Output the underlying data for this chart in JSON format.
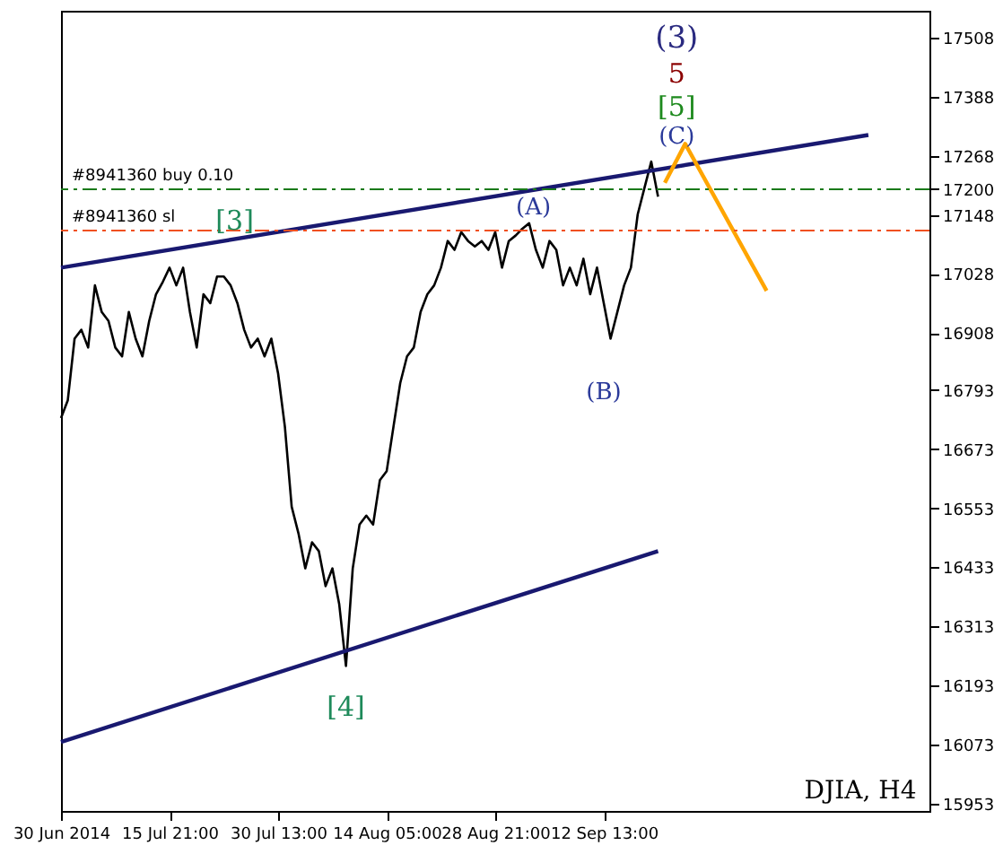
{
  "chart_data": {
    "type": "line",
    "categories": [
      "30 Jun 2014",
      null,
      null,
      null,
      null,
      null,
      null,
      null,
      null,
      null,
      null,
      null,
      null,
      null,
      null,
      null,
      "15 Jul 21:00",
      null,
      null,
      null,
      null,
      null,
      null,
      null,
      null,
      null,
      null,
      null,
      null,
      null,
      null,
      null,
      "30 Jul 13:00",
      null,
      null,
      null,
      null,
      null,
      null,
      null,
      null,
      null,
      null,
      null,
      null,
      null,
      null,
      null,
      "14 Aug 05:00",
      null,
      null,
      null,
      null,
      null,
      null,
      null,
      null,
      null,
      null,
      null,
      null,
      null,
      null,
      null,
      "28 Aug 21:00",
      null,
      null,
      null,
      null,
      null,
      null,
      null,
      null,
      null,
      null,
      null,
      null,
      null,
      null,
      null,
      "12 Sep 13:00",
      null,
      null,
      null,
      null,
      null,
      null,
      null,
      null,
      null,
      null,
      null,
      null,
      null,
      null,
      null,
      null,
      null,
      null,
      null,
      null,
      null,
      null,
      null,
      null,
      null,
      null,
      null,
      null,
      null,
      null,
      null,
      null,
      null,
      null,
      null,
      null,
      null,
      null,
      null,
      null,
      null,
      null,
      null,
      null,
      null,
      null,
      null,
      null
    ],
    "series": [
      {
        "color": "#000000",
        "values": [
          16736,
          16772,
          16897,
          16915,
          16879,
          17005,
          16951,
          16933,
          16879,
          16861,
          16951,
          16897,
          16861,
          16933,
          16987,
          17012,
          17041,
          17005,
          17041,
          16951,
          16879,
          16987,
          16969,
          17023,
          17023,
          17005,
          16969,
          16915,
          16879,
          16897,
          16861,
          16897,
          16826,
          16718,
          16556,
          16502,
          16431,
          16484,
          16466,
          16395,
          16431,
          16359,
          16233,
          16431,
          16520,
          16538,
          16520,
          16610,
          16628,
          16718,
          16807,
          16861,
          16879,
          16951,
          16987,
          17005,
          17041,
          17095,
          17077,
          17113,
          17095,
          17084,
          17095,
          17077,
          17113,
          17041,
          17095,
          17106,
          17120,
          17131,
          17077,
          17041,
          17095,
          17077,
          17005,
          17041,
          17005,
          17059,
          16987,
          17041,
          16969,
          16897,
          16951,
          17005,
          17041,
          17149,
          17203,
          17256,
          17185,
          null,
          null,
          null,
          null,
          null,
          null,
          null,
          null,
          null,
          null,
          null,
          null,
          null,
          null,
          null,
          null,
          null,
          null,
          null,
          null,
          null,
          null,
          null,
          null,
          null,
          null,
          null,
          null,
          null,
          null,
          null,
          null,
          null,
          null,
          null,
          null,
          null,
          null,
          null,
          null
        ]
      },
      {
        "color": "#191970",
        "values": [
          17041,
          null,
          null,
          null,
          null,
          null,
          null,
          null,
          null,
          null,
          null,
          null,
          null,
          null,
          null,
          null,
          null,
          null,
          null,
          null,
          null,
          null,
          null,
          null,
          null,
          null,
          null,
          null,
          null,
          null,
          null,
          null,
          null,
          null,
          null,
          null,
          null,
          null,
          null,
          null,
          null,
          null,
          null,
          null,
          null,
          null,
          null,
          null,
          null,
          null,
          null,
          null,
          null,
          null,
          null,
          null,
          null,
          null,
          null,
          null,
          null,
          null,
          null,
          null,
          null,
          null,
          null,
          null,
          null,
          null,
          null,
          null,
          null,
          null,
          null,
          null,
          null,
          null,
          null,
          null,
          null,
          null,
          null,
          null,
          null,
          null,
          null,
          null,
          null,
          null,
          null,
          null,
          null,
          null,
          null,
          null,
          null,
          null,
          null,
          null,
          null,
          null,
          null,
          null,
          null,
          null,
          null,
          null,
          null,
          null,
          null,
          null,
          null,
          null,
          null,
          null,
          null,
          null,
          null,
          17310,
          null,
          null,
          null,
          null,
          null,
          null,
          null,
          null,
          null
        ]
      },
      {
        "color": "#191970",
        "values": [
          16079,
          null,
          null,
          null,
          null,
          null,
          null,
          null,
          null,
          null,
          null,
          null,
          null,
          null,
          null,
          null,
          null,
          null,
          null,
          null,
          null,
          null,
          null,
          null,
          null,
          null,
          null,
          null,
          null,
          null,
          null,
          null,
          null,
          null,
          null,
          null,
          null,
          null,
          null,
          null,
          null,
          null,
          null,
          null,
          null,
          null,
          null,
          null,
          null,
          null,
          null,
          null,
          null,
          null,
          null,
          null,
          null,
          null,
          null,
          null,
          null,
          null,
          null,
          null,
          null,
          null,
          null,
          null,
          null,
          null,
          null,
          null,
          null,
          null,
          null,
          null,
          null,
          null,
          null,
          null,
          null,
          null,
          null,
          null,
          null,
          null,
          null,
          null,
          16466,
          null,
          null,
          null,
          null,
          null,
          null,
          null,
          null,
          null,
          null,
          null,
          null,
          null,
          null,
          null,
          null,
          null,
          null,
          null,
          null,
          null,
          null,
          null,
          null,
          null,
          null,
          null,
          null,
          null,
          null,
          null,
          null,
          null,
          null,
          null,
          null,
          null,
          null,
          null,
          null
        ]
      },
      {
        "color": "#ffa500",
        "values": [
          null,
          null,
          null,
          null,
          null,
          null,
          null,
          null,
          null,
          null,
          null,
          null,
          null,
          null,
          null,
          null,
          null,
          null,
          null,
          null,
          null,
          null,
          null,
          null,
          null,
          null,
          null,
          null,
          null,
          null,
          null,
          null,
          null,
          null,
          null,
          null,
          null,
          null,
          null,
          null,
          null,
          null,
          null,
          null,
          null,
          null,
          null,
          null,
          null,
          null,
          null,
          null,
          null,
          null,
          null,
          null,
          null,
          null,
          null,
          null,
          null,
          null,
          null,
          null,
          null,
          null,
          null,
          null,
          null,
          null,
          null,
          null,
          null,
          null,
          null,
          null,
          null,
          null,
          null,
          null,
          null,
          null,
          null,
          null,
          null,
          null,
          null,
          null,
          null,
          17213,
          null,
          null,
          17292,
          null,
          null,
          null,
          null,
          null,
          null,
          null,
          null,
          null,
          null,
          null,
          16994,
          null,
          null,
          null,
          null,
          null,
          null,
          null,
          null,
          null,
          null,
          null,
          null,
          null,
          null,
          null,
          null,
          null,
          null,
          null,
          null,
          null,
          null,
          null,
          null
        ]
      }
    ],
    "ylim": [
      15939,
      17562
    ],
    "yticks": [
      15953,
      16073,
      16193,
      16313,
      16433,
      16553,
      16673,
      16793,
      16908,
      17028,
      17148,
      17200,
      17268,
      17388,
      17508
    ],
    "ref_lines": [
      {
        "axis": "y",
        "value": 17200,
        "label": "#8941360 buy 0.10",
        "color": "#1a7a1a",
        "line_style": "dashed"
      },
      {
        "axis": "y",
        "value": 17116,
        "label": "#8941360 sl",
        "color": "#f05020",
        "line_style": "dashed"
      }
    ],
    "annotations": [
      "(3)",
      "5",
      "[5]",
      "(C)",
      "(A)",
      "(B)",
      "[3]",
      "[4]",
      "DJIA, H4"
    ],
    "grid": false
  }
}
